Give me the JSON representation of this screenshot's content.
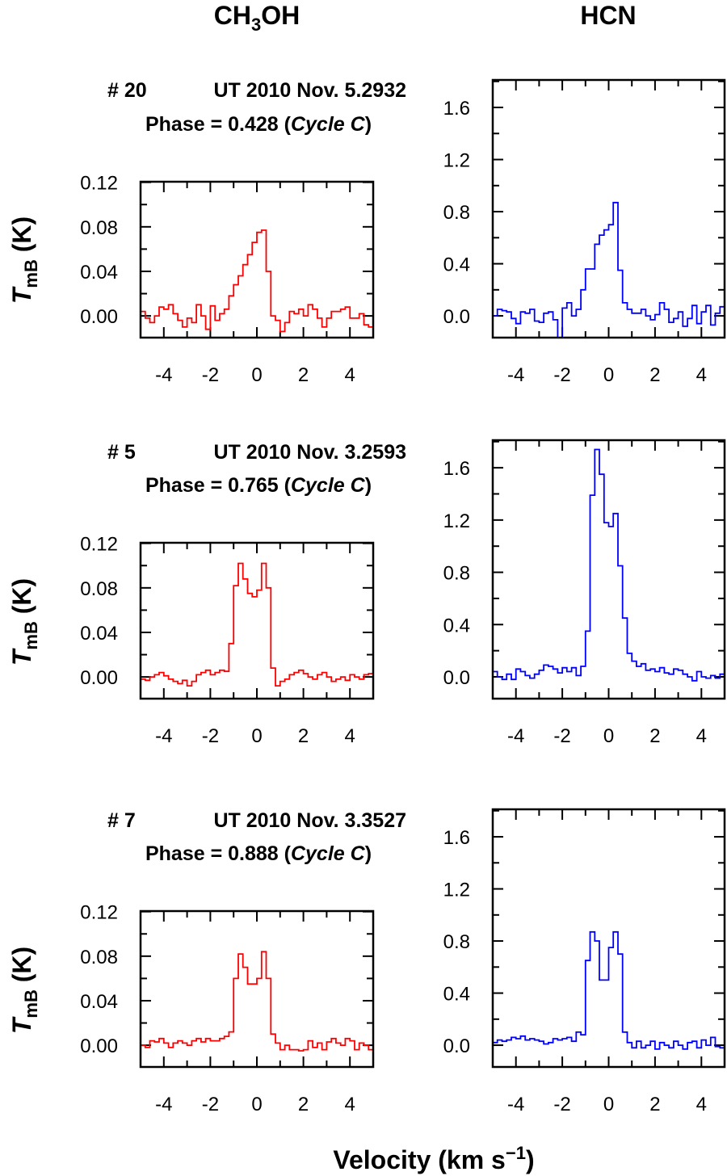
{
  "chart_data": {
    "type": "line",
    "style": "step",
    "column_titles": {
      "left": "CH3OH",
      "left_main": "CH",
      "left_sub": "3",
      "left_tail": "OH",
      "right": "HCN"
    },
    "xlabel": "Velocity  (km s−1)",
    "xlabel_main": "Velocity  (km s",
    "xlabel_sup": "−1",
    "xlabel_tail": ")",
    "ylabel": "TmB (K)",
    "ylabel_T": "T",
    "ylabel_sub": "mB",
    "ylabel_unit": " (K)",
    "xlim": [
      -5,
      5
    ],
    "x_ticks": [
      "-4",
      "-2",
      "0",
      "2",
      "4"
    ],
    "x_start": -4.9,
    "x_step": 0.2,
    "colors": {
      "CH3OH": "#ff0000",
      "HCN": "#0000ff"
    },
    "grid": false,
    "rows": [
      {
        "anno_line1_a": "# 20",
        "anno_line1_b": "UT 2010 Nov. 5.2932",
        "anno_line2_a": "Phase = 0.428  (",
        "anno_line2_b": "Cycle C",
        "anno_line2_c": ")",
        "CH3OH": {
          "ylim": [
            -0.0195,
            0.1205
          ],
          "y_ticks": [
            "0.00",
            "0.04",
            "0.08",
            "0.12"
          ],
          "values": [
            0.004,
            -0.002,
            -0.006,
            0.0,
            0.008,
            0.006,
            0.01,
            0.002,
            -0.004,
            -0.01,
            -0.002,
            -0.006,
            0.01,
            0.0,
            -0.012,
            0.009,
            -0.004,
            0.002,
            0.006,
            0.018,
            0.028,
            0.036,
            0.046,
            0.055,
            0.066,
            0.075,
            0.077,
            0.04,
            0.0,
            -0.004,
            -0.014,
            -0.006,
            0.004,
            0.002,
            0.006,
            0.0,
            0.01,
            0.006,
            -0.002,
            -0.01,
            -0.002,
            0.004,
            0.004,
            0.006,
            0.008,
            -0.002,
            -0.002,
            0.002,
            -0.008,
            -0.01
          ]
        },
        "HCN": {
          "ylim": [
            -0.167,
            1.811
          ],
          "y_ticks": [
            "0.0",
            "0.4",
            "0.8",
            "1.2",
            "1.6"
          ],
          "values": [
            0.0,
            0.05,
            0.04,
            0.03,
            -0.02,
            -0.06,
            0.03,
            0.02,
            0.05,
            -0.04,
            -0.05,
            0.02,
            0.03,
            -0.03,
            -0.17,
            0.06,
            0.1,
            0.0,
            0.05,
            0.2,
            0.36,
            0.36,
            0.55,
            0.62,
            0.66,
            0.7,
            0.87,
            0.35,
            0.1,
            0.05,
            0.02,
            0.02,
            0.05,
            0.0,
            -0.03,
            0.01,
            0.1,
            0.05,
            -0.05,
            -0.02,
            0.03,
            -0.08,
            -0.02,
            0.08,
            -0.06,
            0.03,
            0.08,
            -0.07,
            0.02,
            0.07
          ]
        }
      },
      {
        "anno_line1_a": "# 5",
        "anno_line1_b": "UT 2010 Nov. 3.2593",
        "anno_line2_a": "Phase = 0.765  (",
        "anno_line2_b": "Cycle C",
        "anno_line2_c": ")",
        "CH3OH": {
          "ylim": [
            -0.0195,
            0.1205
          ],
          "y_ticks": [
            "0.00",
            "0.04",
            "0.08",
            "0.12"
          ],
          "values": [
            -0.002,
            -0.003,
            0.0,
            0.002,
            0.004,
            0.001,
            -0.002,
            -0.004,
            -0.006,
            -0.003,
            -0.008,
            -0.004,
            0.002,
            0.004,
            0.006,
            0.002,
            0.004,
            0.006,
            0.005,
            0.03,
            0.082,
            0.102,
            0.088,
            0.075,
            0.072,
            0.078,
            0.102,
            0.08,
            0.008,
            -0.008,
            -0.004,
            -0.002,
            0.002,
            0.004,
            0.006,
            0.003,
            0.0,
            -0.002,
            0.002,
            0.004,
            0.0,
            -0.004,
            -0.002,
            0.0,
            -0.003,
            0.002,
            0.0,
            -0.002,
            0.002,
            0.003
          ]
        },
        "HCN": {
          "ylim": [
            -0.167,
            1.811
          ],
          "y_ticks": [
            "0.0",
            "0.4",
            "0.8",
            "1.2",
            "1.6"
          ],
          "values": [
            0.04,
            0.0,
            -0.02,
            0.02,
            -0.02,
            0.06,
            0.04,
            0.01,
            -0.01,
            0.02,
            0.05,
            0.09,
            0.08,
            0.06,
            0.03,
            0.07,
            0.04,
            0.07,
            0.01,
            0.08,
            0.35,
            1.39,
            1.74,
            1.55,
            1.18,
            1.15,
            1.25,
            0.85,
            0.45,
            0.18,
            0.12,
            0.08,
            0.1,
            0.05,
            0.06,
            0.04,
            0.07,
            0.03,
            0.02,
            0.06,
            0.05,
            0.02,
            0.0,
            -0.03,
            0.04,
            0.0,
            -0.01,
            0.01,
            -0.01,
            0.02
          ]
        }
      },
      {
        "anno_line1_a": "# 7",
        "anno_line1_b": "UT 2010 Nov. 3.3527",
        "anno_line2_a": "Phase = 0.888  (",
        "anno_line2_b": "Cycle C",
        "anno_line2_c": ")",
        "CH3OH": {
          "ylim": [
            -0.0195,
            0.1205
          ],
          "y_ticks": [
            "0.00",
            "0.04",
            "0.08",
            "0.12"
          ],
          "values": [
            0.0,
            -0.002,
            0.004,
            0.003,
            0.006,
            0.002,
            -0.002,
            0.002,
            0.004,
            0.002,
            0.0,
            0.004,
            0.006,
            0.003,
            0.006,
            0.004,
            0.004,
            0.006,
            0.008,
            0.012,
            0.06,
            0.082,
            0.07,
            0.055,
            0.055,
            0.06,
            0.084,
            0.06,
            0.01,
            0.002,
            -0.004,
            0.0,
            -0.004,
            -0.004,
            -0.005,
            -0.004,
            0.004,
            -0.002,
            0.002,
            -0.004,
            0.003,
            0.006,
            0.002,
            0.0,
            0.006,
            0.004,
            -0.004,
            0.002,
            0.0,
            -0.004
          ]
        },
        "HCN": {
          "ylim": [
            -0.167,
            1.811
          ],
          "y_ticks": [
            "0.0",
            "0.4",
            "0.8",
            "1.2",
            "1.6"
          ],
          "values": [
            0.02,
            0.04,
            0.03,
            0.04,
            0.06,
            0.05,
            0.07,
            0.04,
            0.05,
            0.04,
            0.03,
            0.01,
            0.02,
            0.05,
            0.04,
            0.05,
            0.06,
            0.03,
            0.1,
            0.08,
            0.65,
            0.87,
            0.8,
            0.5,
            0.5,
            0.75,
            0.87,
            0.7,
            0.1,
            0.02,
            -0.02,
            0.03,
            -0.02,
            0.0,
            0.03,
            -0.03,
            0.02,
            0.0,
            -0.02,
            0.03,
            0.0,
            -0.03,
            0.02,
            0.03,
            -0.02,
            0.04,
            0.0,
            0.06,
            -0.01,
            -0.02
          ]
        }
      }
    ]
  }
}
